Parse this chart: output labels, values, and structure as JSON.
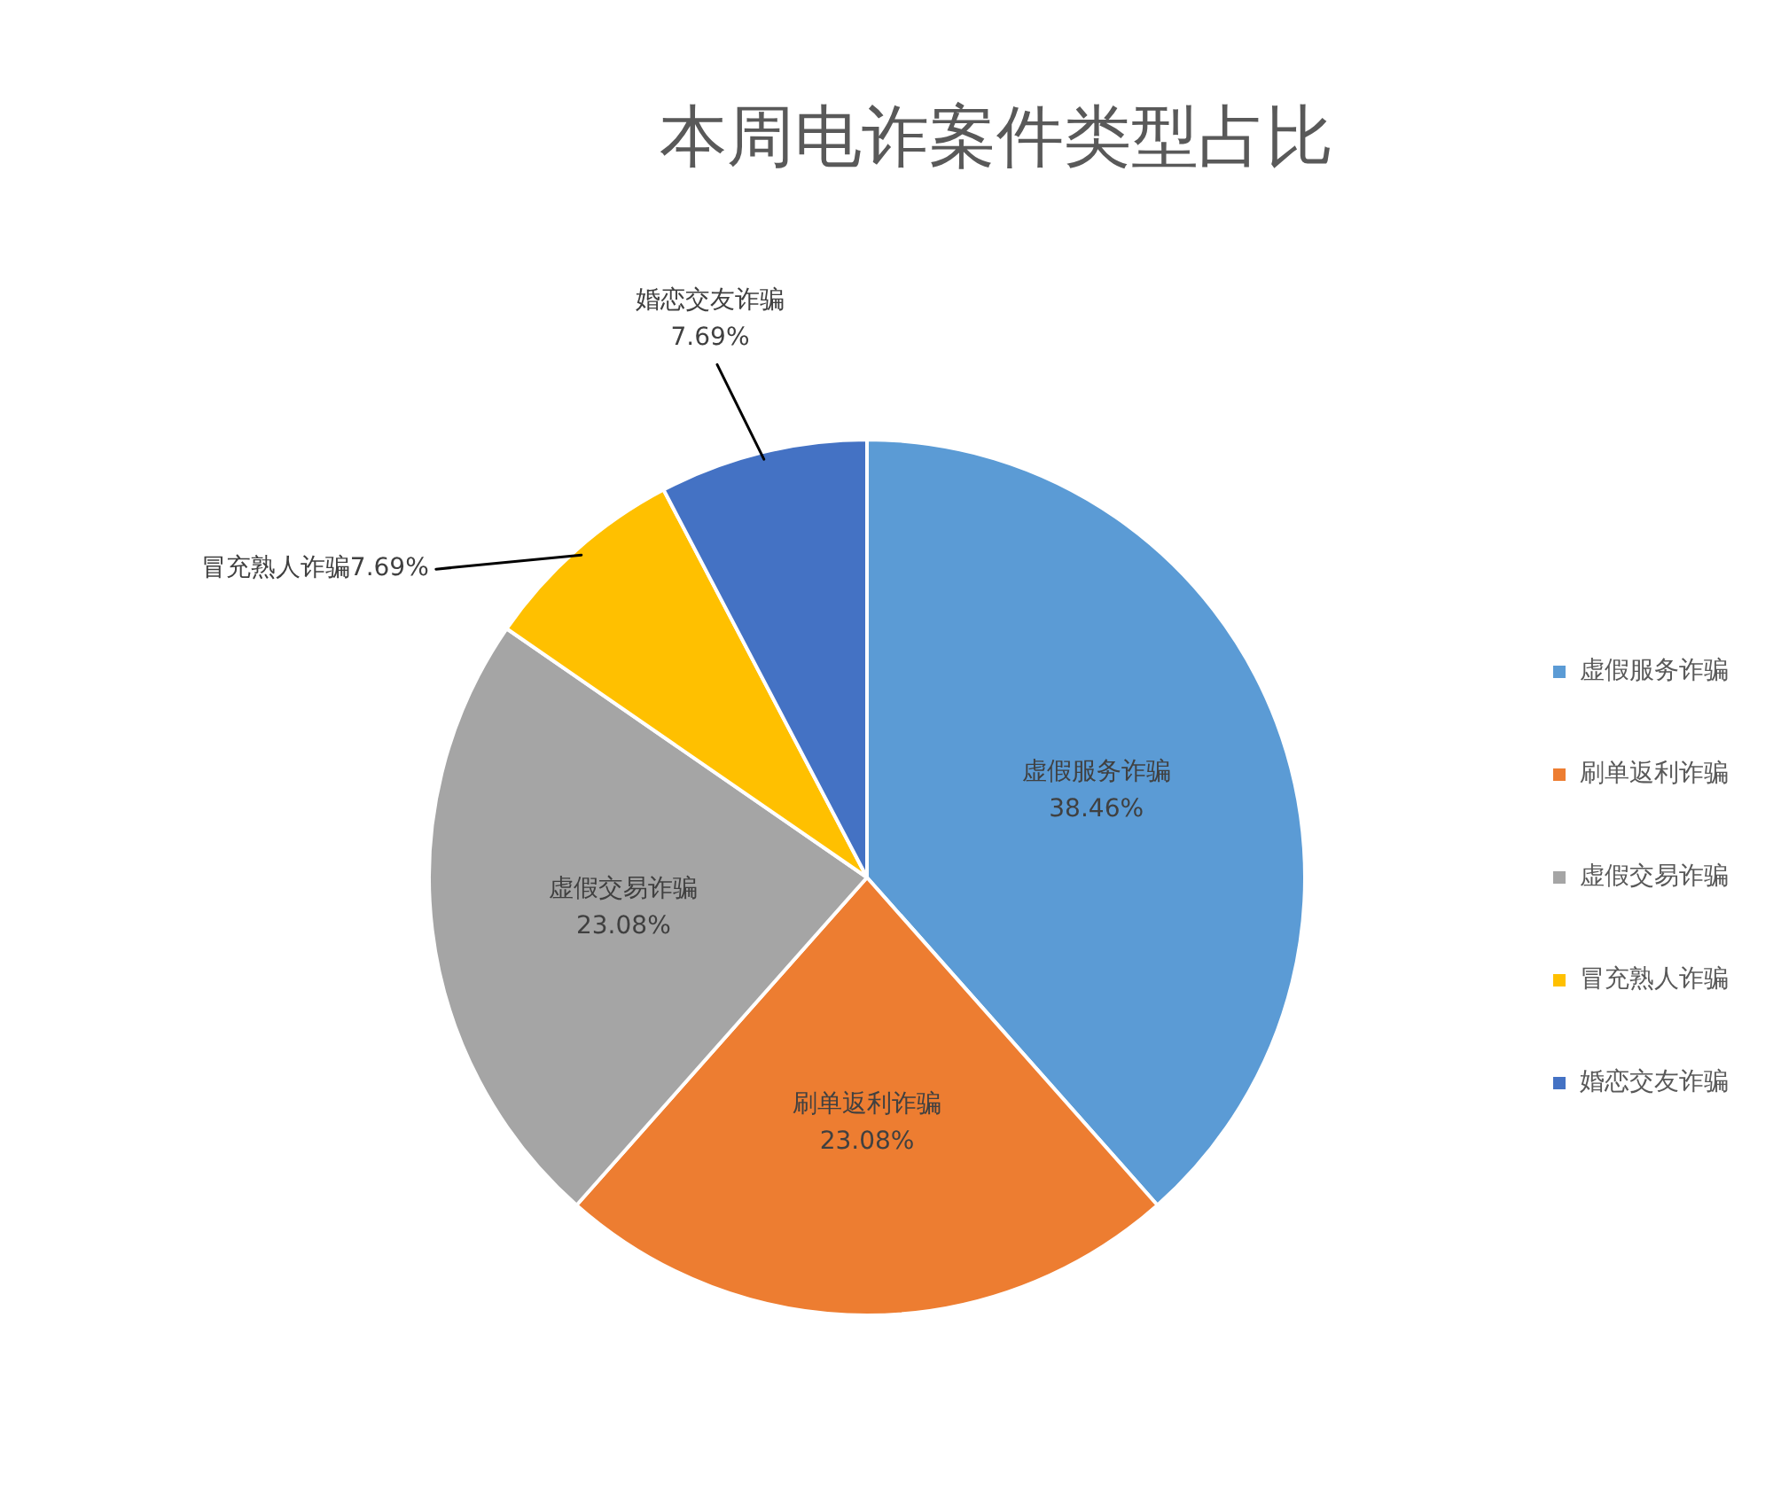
{
  "chart_data": {
    "type": "pie",
    "title": "本周电诈案件类型占比",
    "categories": [
      "虚假服务诈骗",
      "刷单返利诈骗",
      "虚假交易诈骗",
      "冒充熟人诈骗",
      "婚恋交友诈骗"
    ],
    "values": [
      38.46,
      23.08,
      23.08,
      7.69,
      7.69
    ],
    "colors": [
      "#5b9bd5",
      "#ed7d31",
      "#a5a5a5",
      "#ffc000",
      "#4472c4"
    ],
    "value_labels": [
      "38.46%",
      "23.08%",
      "23.08%",
      "7.69%",
      "7.69%"
    ],
    "legend": "right"
  }
}
